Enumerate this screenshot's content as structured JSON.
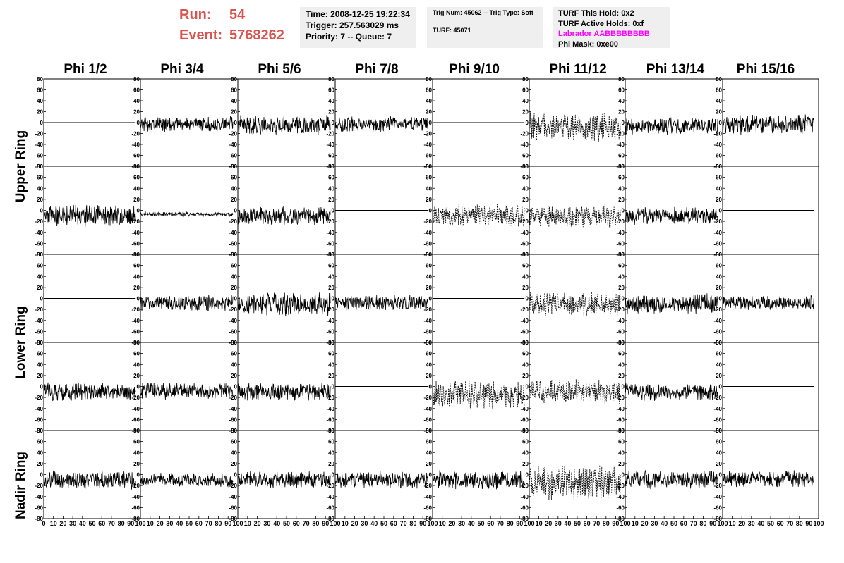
{
  "header": {
    "run_label": "Run:",
    "run_value": "54",
    "event_label": "Event:",
    "event_value": "5768262",
    "time": "Time: 2008-12-25 19:22:34",
    "trigger": "Trigger: 257.563029 ms",
    "priority": "Priority: 7 -- Queue: 7",
    "trig_num": "Trig Num: 45062 -- Trig Type: Soft",
    "turf": "TURF: 45071",
    "turf_this_hold": "TURF This Hold: 0x2",
    "turf_active_holds": "TURF Active Holds: 0xf",
    "labrador": "Labrador AABBBBBBBB",
    "phi_mask": "Phi Mask: 0xe00"
  },
  "columns": [
    "Phi 1/2",
    "Phi 3/4",
    "Phi 5/6",
    "Phi 7/8",
    "Phi 9/10",
    "Phi 11/12",
    "Phi 13/14",
    "Phi 15/16"
  ],
  "rings": [
    "Upper Ring",
    "Lower Ring",
    "Nadir Ring"
  ],
  "colors": {
    "run_text": "#d9534f",
    "labrador_text": "#ff00ff",
    "trace": "#000000",
    "header_box": "#efefef"
  },
  "chart_data": {
    "type": "line",
    "title": "",
    "xlabel": "",
    "ylabel": "",
    "xlim": [
      0,
      100
    ],
    "ylim": [
      -80,
      80
    ],
    "x_ticks": [
      0,
      10,
      20,
      30,
      40,
      50,
      60,
      70,
      80,
      90,
      100
    ],
    "y_ticks": [
      -80,
      -60,
      -40,
      -20,
      0,
      20,
      40,
      60,
      80
    ],
    "grid": false,
    "panel_rows": 5,
    "panel_cols": 8,
    "trace_span": [
      0,
      95
    ],
    "panels": [
      {
        "row": 0,
        "col": 0,
        "kind": "flat",
        "offset": 0,
        "amp": 0
      },
      {
        "row": 0,
        "col": 1,
        "kind": "solid",
        "offset": -3,
        "amp": 11
      },
      {
        "row": 0,
        "col": 2,
        "kind": "solid",
        "offset": -5,
        "amp": 14
      },
      {
        "row": 0,
        "col": 3,
        "kind": "solid",
        "offset": -3,
        "amp": 11
      },
      {
        "row": 0,
        "col": 4,
        "kind": "flat",
        "offset": 0,
        "amp": 0
      },
      {
        "row": 0,
        "col": 5,
        "kind": "dashed",
        "offset": -8,
        "amp": 20
      },
      {
        "row": 0,
        "col": 6,
        "kind": "solid",
        "offset": -7,
        "amp": 12
      },
      {
        "row": 0,
        "col": 7,
        "kind": "solid",
        "offset": -3,
        "amp": 14
      },
      {
        "row": 1,
        "col": 0,
        "kind": "solid",
        "offset": -10,
        "amp": 15
      },
      {
        "row": 1,
        "col": 1,
        "kind": "solid",
        "offset": -7,
        "amp": 3
      },
      {
        "row": 1,
        "col": 2,
        "kind": "solid",
        "offset": -10,
        "amp": 13
      },
      {
        "row": 1,
        "col": 3,
        "kind": "flat",
        "offset": 0,
        "amp": 0
      },
      {
        "row": 1,
        "col": 4,
        "kind": "dashed",
        "offset": -10,
        "amp": 16
      },
      {
        "row": 1,
        "col": 5,
        "kind": "dashed",
        "offset": -10,
        "amp": 16
      },
      {
        "row": 1,
        "col": 6,
        "kind": "solid",
        "offset": -10,
        "amp": 12
      },
      {
        "row": 1,
        "col": 7,
        "kind": "flat",
        "offset": 0,
        "amp": 0
      },
      {
        "row": 2,
        "col": 0,
        "kind": "flat",
        "offset": 0,
        "amp": 0
      },
      {
        "row": 2,
        "col": 1,
        "kind": "solid",
        "offset": -8,
        "amp": 11
      },
      {
        "row": 2,
        "col": 2,
        "kind": "solid",
        "offset": -10,
        "amp": 17
      },
      {
        "row": 2,
        "col": 3,
        "kind": "solid",
        "offset": -8,
        "amp": 11
      },
      {
        "row": 2,
        "col": 4,
        "kind": "flat",
        "offset": 0,
        "amp": 0
      },
      {
        "row": 2,
        "col": 5,
        "kind": "dashed",
        "offset": -10,
        "amp": 17
      },
      {
        "row": 2,
        "col": 6,
        "kind": "solid",
        "offset": -10,
        "amp": 14
      },
      {
        "row": 2,
        "col": 7,
        "kind": "solid",
        "offset": -8,
        "amp": 10
      },
      {
        "row": 3,
        "col": 0,
        "kind": "solid",
        "offset": -10,
        "amp": 13
      },
      {
        "row": 3,
        "col": 1,
        "kind": "solid",
        "offset": -8,
        "amp": 12
      },
      {
        "row": 3,
        "col": 2,
        "kind": "solid",
        "offset": -10,
        "amp": 13
      },
      {
        "row": 3,
        "col": 3,
        "kind": "flat",
        "offset": 0,
        "amp": 0
      },
      {
        "row": 3,
        "col": 4,
        "kind": "dashed",
        "offset": -15,
        "amp": 20
      },
      {
        "row": 3,
        "col": 5,
        "kind": "dashed",
        "offset": -10,
        "amp": 17
      },
      {
        "row": 3,
        "col": 6,
        "kind": "solid",
        "offset": -10,
        "amp": 12
      },
      {
        "row": 3,
        "col": 7,
        "kind": "flat",
        "offset": 0,
        "amp": 0
      },
      {
        "row": 4,
        "col": 0,
        "kind": "solid",
        "offset": -10,
        "amp": 13
      },
      {
        "row": 4,
        "col": 1,
        "kind": "solid",
        "offset": -10,
        "amp": 10
      },
      {
        "row": 4,
        "col": 2,
        "kind": "solid",
        "offset": -10,
        "amp": 12
      },
      {
        "row": 4,
        "col": 3,
        "kind": "solid",
        "offset": -10,
        "amp": 12
      },
      {
        "row": 4,
        "col": 4,
        "kind": "solid",
        "offset": -10,
        "amp": 13
      },
      {
        "row": 4,
        "col": 5,
        "kind": "dashed",
        "offset": -15,
        "amp": 24
      },
      {
        "row": 4,
        "col": 6,
        "kind": "solid",
        "offset": -10,
        "amp": 13
      },
      {
        "row": 4,
        "col": 7,
        "kind": "solid",
        "offset": -8,
        "amp": 12
      }
    ]
  }
}
